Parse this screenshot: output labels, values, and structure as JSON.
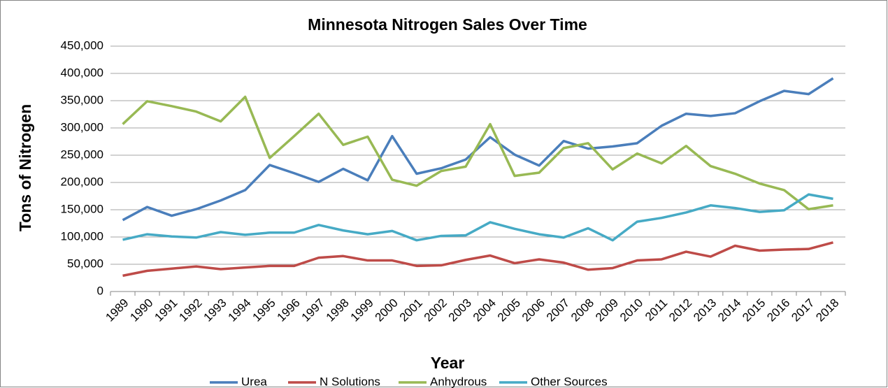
{
  "chart_data": {
    "type": "line",
    "title": "Minnesota Nitrogen Sales Over Time",
    "x_label": "Year",
    "y_label": "Tons of Nitrogen",
    "categories": [
      "1989",
      "1990",
      "1991",
      "1992",
      "1993",
      "1994",
      "1995",
      "1996",
      "1997",
      "1998",
      "1999",
      "2000",
      "2001",
      "2002",
      "2003",
      "2004",
      "2005",
      "2006",
      "2007",
      "2008",
      "2009",
      "2010",
      "2011",
      "2012",
      "2013",
      "2014",
      "2015",
      "2016",
      "2017",
      "2018"
    ],
    "series": [
      {
        "name": "Urea",
        "color": "#4a7ebb",
        "values": [
          131000,
          155000,
          139000,
          151000,
          167000,
          186000,
          232000,
          217000,
          201000,
          225000,
          204000,
          285000,
          216000,
          226000,
          242000,
          283000,
          251000,
          231000,
          276000,
          262000,
          266000,
          272000,
          304000,
          326000,
          322000,
          327000,
          349000,
          368000,
          362000,
          391000
        ]
      },
      {
        "name": "N Solutions",
        "color": "#be4b48",
        "values": [
          29000,
          38000,
          42000,
          46000,
          41000,
          44000,
          47000,
          47000,
          62000,
          65000,
          57000,
          57000,
          47000,
          48000,
          58000,
          66000,
          52000,
          59000,
          53000,
          40000,
          43000,
          57000,
          59000,
          73000,
          64000,
          84000,
          75000,
          77000,
          78000,
          90000
        ]
      },
      {
        "name": "Anhydrous",
        "color": "#98b954",
        "values": [
          307000,
          349000,
          340000,
          330000,
          312000,
          357000,
          245000,
          285000,
          326000,
          269000,
          284000,
          205000,
          194000,
          221000,
          229000,
          307000,
          212000,
          218000,
          263000,
          272000,
          224000,
          253000,
          235000,
          267000,
          230000,
          216000,
          198000,
          186000,
          151000,
          158000
        ]
      },
      {
        "name": "Other Sources",
        "color": "#46aac5",
        "values": [
          95000,
          105000,
          101000,
          99000,
          109000,
          104000,
          108000,
          108000,
          122000,
          112000,
          105000,
          111000,
          94000,
          102000,
          103000,
          127000,
          115000,
          105000,
          99000,
          116000,
          94000,
          128000,
          135000,
          145000,
          158000,
          153000,
          146000,
          149000,
          178000,
          170000
        ]
      }
    ],
    "ylim": [
      0,
      450000
    ],
    "yticks": [
      0,
      {
        "value": 50000,
        "label": "50,000"
      },
      {
        "value": 100000,
        "label": "100,000"
      },
      {
        "value": 150000,
        "label": "150,000"
      },
      {
        "value": 200000,
        "label": "200,000"
      },
      {
        "value": 250000,
        "label": "250,000"
      },
      {
        "value": 300000,
        "label": "300,000"
      },
      {
        "value": 350000,
        "label": "350,000"
      },
      {
        "value": 400000,
        "label": "400,000"
      },
      {
        "value": 450000,
        "label": "450,000"
      }
    ],
    "grid": true,
    "legend": "bottom"
  }
}
